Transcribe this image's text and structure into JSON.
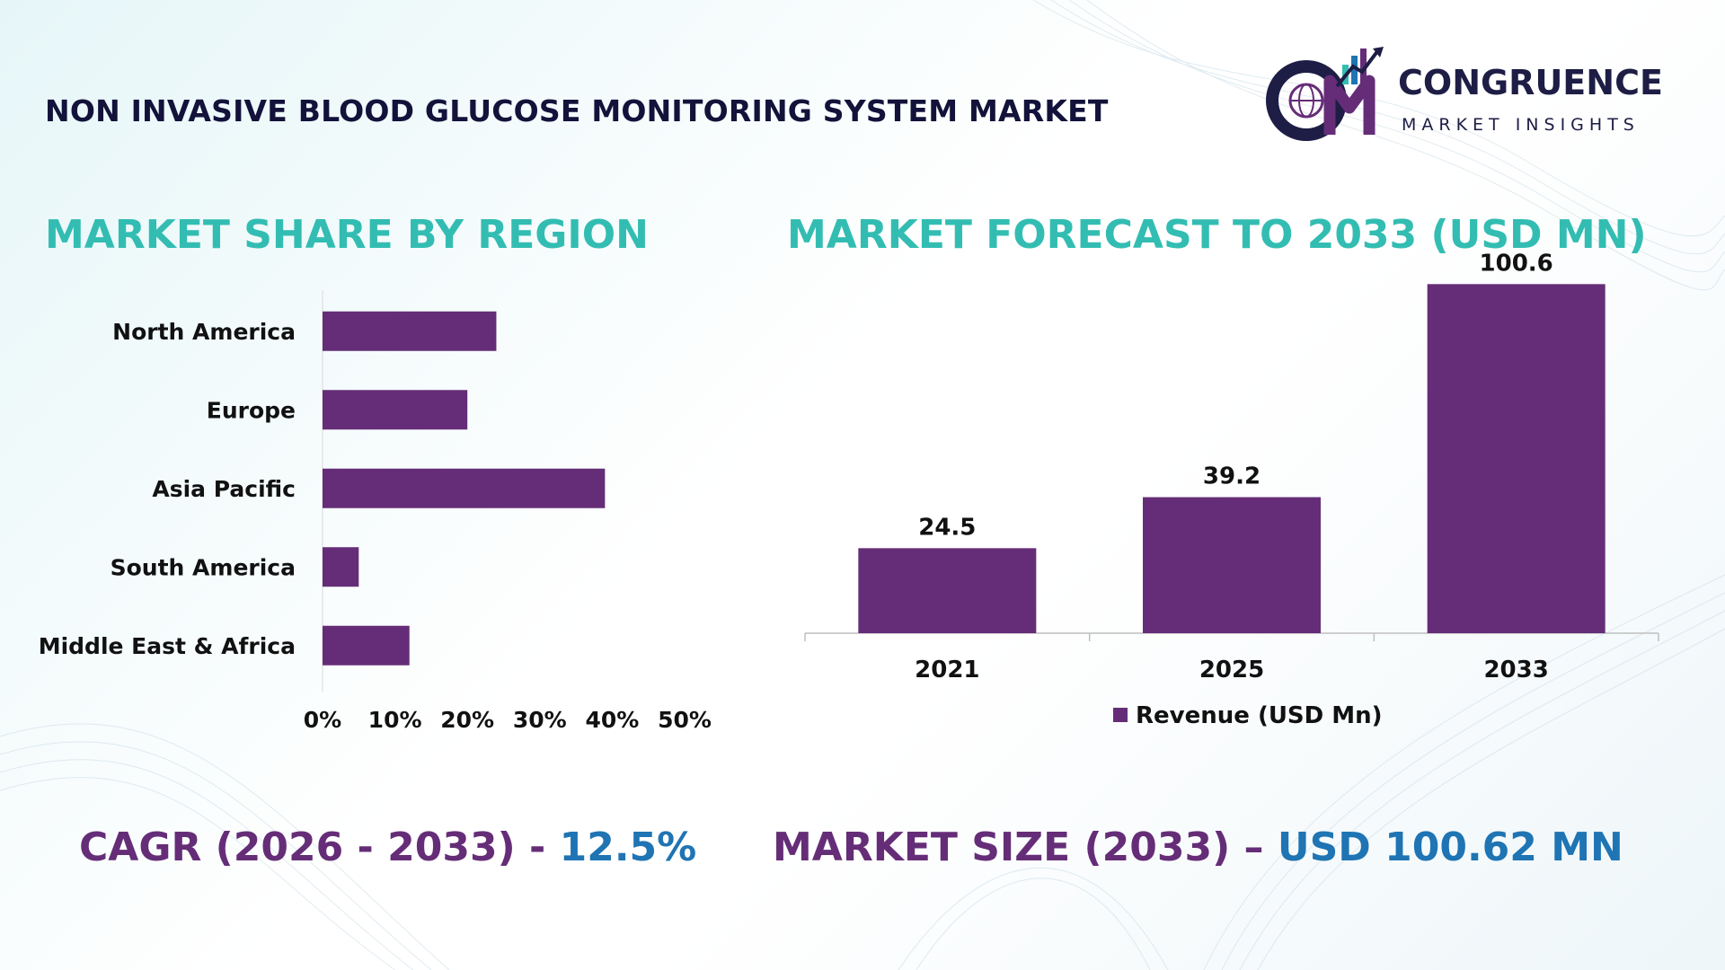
{
  "header": {
    "title": "NON INVASIVE BLOOD GLUCOSE MONITORING SYSTEM MARKET"
  },
  "logo": {
    "word": "CONGRUENCE",
    "sub": "MARKET INSIGHTS",
    "icon": "cm-globe-chart-logo"
  },
  "colors": {
    "bar": "#652d77",
    "section_title": "#33bdb2",
    "kpi_label": "#652d77",
    "kpi_value": "#1f74b3"
  },
  "chart_data": [
    {
      "type": "bar",
      "orientation": "horizontal",
      "title": "MARKET SHARE BY REGION",
      "categories": [
        "North America",
        "Europe",
        "Asia Pacific",
        "South America",
        "Middle East & Africa"
      ],
      "values": [
        24,
        20,
        39,
        5,
        12
      ],
      "unit": "%",
      "xlim": [
        0,
        50
      ],
      "xticks": [
        "0%",
        "10%",
        "20%",
        "30%",
        "40%",
        "50%"
      ],
      "grid": false
    },
    {
      "type": "bar",
      "orientation": "vertical",
      "title": "MARKET FORECAST TO 2033 (USD MN)",
      "categories": [
        "2021",
        "2025",
        "2033"
      ],
      "series": [
        {
          "name": "Revenue (USD Mn)",
          "values": [
            24.5,
            39.2,
            100.6
          ]
        }
      ],
      "data_labels": [
        "24.5",
        "39.2",
        "100.6"
      ],
      "ylim": [
        0,
        110
      ],
      "legend": "bottom",
      "grid": false
    }
  ],
  "kpis": {
    "cagr_label": "CAGR (2026 - 2033) - ",
    "cagr_value": "12.5%",
    "size_label": "MARKET SIZE (2033) – ",
    "size_value": "USD 100.62 MN"
  }
}
